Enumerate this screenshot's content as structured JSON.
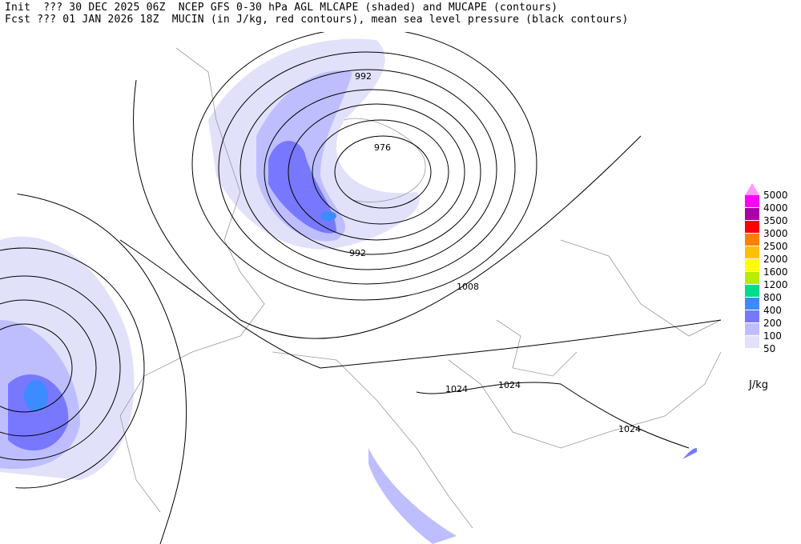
{
  "header": {
    "init_line": "Init  ??? 30 DEC 2025 06Z  NCEP GFS 0-30 hPa AGL MLCAPE (shaded) and MUCAPE (contours)",
    "fcst_line": "Fcst ??? 01 JAN 2026 18Z  MUCIN (in J/kg, red contours), mean sea level pressure (black contours)"
  },
  "legend": {
    "unit": "J/kg",
    "overflow_color": "#ff99ff",
    "items": [
      {
        "label": "5000",
        "color": "#ff00ff"
      },
      {
        "label": "4000",
        "color": "#aa00aa"
      },
      {
        "label": "3500",
        "color": "#ff0000"
      },
      {
        "label": "3000",
        "color": "#ff7f00"
      },
      {
        "label": "2500",
        "color": "#ffc000"
      },
      {
        "label": "2000",
        "color": "#ffff00"
      },
      {
        "label": "1600",
        "color": "#b8ec00"
      },
      {
        "label": "1200",
        "color": "#00dc8c"
      },
      {
        "label": "800",
        "color": "#3c8cff"
      },
      {
        "label": "400",
        "color": "#7878ff"
      },
      {
        "label": "200",
        "color": "#bebeff"
      },
      {
        "label": "100",
        "color": "#e1e1fa"
      },
      {
        "label": "50",
        "color": ""
      }
    ]
  },
  "isobar_labels": [
    "992",
    "976",
    "992",
    "1008",
    "1024",
    "1024",
    "1024"
  ]
}
